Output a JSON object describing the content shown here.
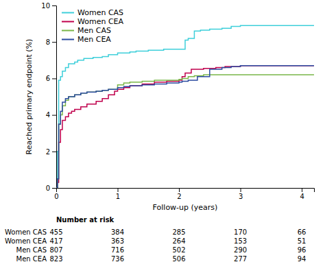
{
  "chart_data": {
    "type": "step",
    "xlabel": "Follow-up (years)",
    "ylabel": "Reached primary endpoint (%)",
    "xlim": [
      0,
      4.2
    ],
    "ylim": [
      0,
      10
    ],
    "xticks": [
      0,
      1,
      2,
      3,
      4
    ],
    "yticks": [
      0,
      2,
      4,
      6,
      8,
      10
    ],
    "legend": "upper left",
    "series": [
      {
        "name": "Women CAS",
        "color": "#3ECFDA",
        "x": [
          0,
          0.02,
          0.04,
          0.07,
          0.1,
          0.15,
          0.2,
          0.3,
          0.35,
          0.45,
          0.6,
          0.75,
          0.85,
          1.0,
          1.1,
          1.2,
          1.3,
          1.5,
          1.75,
          2.0,
          2.1,
          2.15,
          2.25,
          2.35,
          2.5,
          2.7,
          2.85,
          3.0,
          3.5,
          4.0,
          4.2
        ],
        "values": [
          0,
          2.0,
          5.9,
          6.1,
          6.4,
          6.6,
          6.8,
          6.9,
          7.0,
          7.1,
          7.15,
          7.2,
          7.3,
          7.4,
          7.4,
          7.45,
          7.5,
          7.55,
          7.6,
          7.6,
          8.1,
          8.2,
          8.6,
          8.65,
          8.7,
          8.75,
          8.85,
          8.9,
          8.9,
          8.9,
          8.9
        ]
      },
      {
        "name": "Women CEA",
        "color": "#C0004C",
        "x": [
          0,
          0.02,
          0.04,
          0.07,
          0.1,
          0.15,
          0.2,
          0.25,
          0.3,
          0.4,
          0.5,
          0.65,
          0.75,
          0.85,
          0.95,
          1.0,
          1.1,
          1.2,
          1.4,
          1.6,
          1.8,
          2.0,
          2.05,
          2.1,
          2.2,
          2.4,
          2.6,
          2.75,
          3.0,
          3.5,
          4.0,
          4.2
        ],
        "values": [
          0,
          0.3,
          2.5,
          3.2,
          3.7,
          3.9,
          4.1,
          4.2,
          4.3,
          4.45,
          4.6,
          4.75,
          4.9,
          5.1,
          5.3,
          5.4,
          5.5,
          5.6,
          5.7,
          5.8,
          5.85,
          5.9,
          6.1,
          6.3,
          6.5,
          6.55,
          6.6,
          6.65,
          6.7,
          6.7,
          6.7,
          6.7
        ]
      },
      {
        "name": "Men CAS",
        "color": "#7AB648",
        "x": [
          0,
          0.02,
          0.04,
          0.07,
          0.1,
          0.15,
          0.2,
          0.3,
          0.4,
          0.5,
          0.65,
          0.75,
          0.85,
          1.0,
          1.1,
          1.2,
          1.4,
          1.6,
          1.8,
          2.0,
          2.05,
          2.15,
          2.25,
          2.4,
          2.6,
          2.75,
          3.0,
          3.5,
          4.0,
          4.2
        ],
        "values": [
          0,
          0.5,
          3.5,
          4.0,
          4.5,
          4.8,
          5.0,
          5.1,
          5.2,
          5.25,
          5.3,
          5.35,
          5.4,
          5.65,
          5.75,
          5.8,
          5.85,
          5.9,
          5.9,
          5.95,
          6.0,
          6.1,
          6.15,
          6.2,
          6.2,
          6.2,
          6.2,
          6.2,
          6.2,
          6.2
        ]
      },
      {
        "name": "Men CEA",
        "color": "#2B4BA0",
        "x": [
          0,
          0.02,
          0.04,
          0.07,
          0.1,
          0.15,
          0.2,
          0.3,
          0.4,
          0.5,
          0.65,
          0.75,
          0.85,
          1.0,
          1.1,
          1.2,
          1.4,
          1.6,
          1.8,
          2.0,
          2.05,
          2.15,
          2.3,
          2.5,
          2.7,
          2.85,
          3.0,
          3.5,
          4.0,
          4.2
        ],
        "values": [
          0,
          0.5,
          3.5,
          4.2,
          4.7,
          4.9,
          5.0,
          5.1,
          5.2,
          5.25,
          5.3,
          5.35,
          5.4,
          5.5,
          5.55,
          5.6,
          5.65,
          5.7,
          5.75,
          5.8,
          5.85,
          5.9,
          6.1,
          6.5,
          6.6,
          6.65,
          6.7,
          6.7,
          6.7,
          6.7
        ]
      }
    ],
    "risk_table": {
      "label": "Number at risk",
      "times": [
        0,
        1,
        2,
        3,
        4
      ],
      "rows": [
        {
          "name": "Women CAS",
          "values": [
            455,
            384,
            285,
            170,
            66
          ]
        },
        {
          "name": "Women CEA",
          "values": [
            417,
            363,
            264,
            153,
            51
          ]
        },
        {
          "name": "Men CAS",
          "values": [
            807,
            716,
            502,
            290,
            96
          ]
        },
        {
          "name": "Men CEA",
          "values": [
            823,
            736,
            506,
            277,
            94
          ]
        }
      ]
    }
  }
}
